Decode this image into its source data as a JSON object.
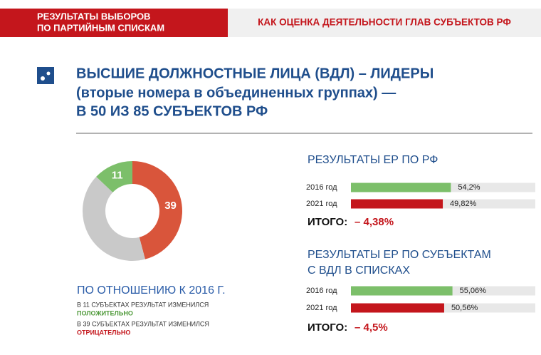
{
  "header": {
    "section": [
      "РЕЗУЛЬТАТЫ ВЫБОРОВ",
      "ПО ПАРТИЙНЫМ СПИСКАМ"
    ],
    "topic": "КАК ОЦЕНКА ДЕЯТЕЛЬНОСТИ ГЛАВ СУБЪЕКТОВ РФ"
  },
  "title": [
    "ВЫСШИЕ ДОЛЖНОСТНЫЕ ЛИЦА (ВДЛ) – ЛИДЕРЫ",
    "(вторые номера в объединенных группах) —",
    "В 50 ИЗ 85 СУБЪЕКТОВ РФ"
  ],
  "chart_data": [
    {
      "type": "pie",
      "donut": true,
      "values": [
        39,
        35,
        11
      ],
      "value_labels": [
        "39",
        null,
        "11"
      ],
      "colors": [
        "#d9553b",
        "#c9c9c9",
        "#7cbf6a"
      ],
      "caption": "ПО ОТНОШЕНИЮ К 2016 Г.",
      "notes": [
        {
          "text": "В 11 СУБЪЕКТАХ РЕЗУЛЬТАТ ИЗМЕНИЛСЯ",
          "emphasis": "ПОЛОЖИТЕЛЬНО",
          "color": "#4f9a3a"
        },
        {
          "text": "В 39 СУБЪЕКТАХ РЕЗУЛЬТАТ ИЗМЕНИЛСЯ",
          "emphasis": "ОТРИЦАТЕЛЬНО",
          "color": "#c4161c"
        }
      ]
    },
    {
      "type": "bar",
      "orientation": "horizontal",
      "title": [
        "РЕЗУЛЬТАТЫ ЕР ПО РФ"
      ],
      "categories": [
        "2016 год",
        "2021 год"
      ],
      "values": [
        54.2,
        49.82
      ],
      "value_labels": [
        "54,2%",
        "49,82%"
      ],
      "colors": [
        "#7cbf6a",
        "#c4161c"
      ],
      "xlim": [
        0,
        100
      ],
      "total_label": "ИТОГО:",
      "total": "– 4,38%"
    },
    {
      "type": "bar",
      "orientation": "horizontal",
      "title": [
        "РЕЗУЛЬТАТЫ ЕР ПО СУБЪЕКТАМ",
        "С ВДЛ В СПИСКАХ"
      ],
      "categories": [
        "2016 год",
        "2021 год"
      ],
      "values": [
        55.06,
        50.56
      ],
      "value_labels": [
        "55,06%",
        "50,56%"
      ],
      "colors": [
        "#7cbf6a",
        "#c4161c"
      ],
      "xlim": [
        0,
        100
      ],
      "total_label": "ИТОГО:",
      "total": "– 4,5%"
    }
  ]
}
